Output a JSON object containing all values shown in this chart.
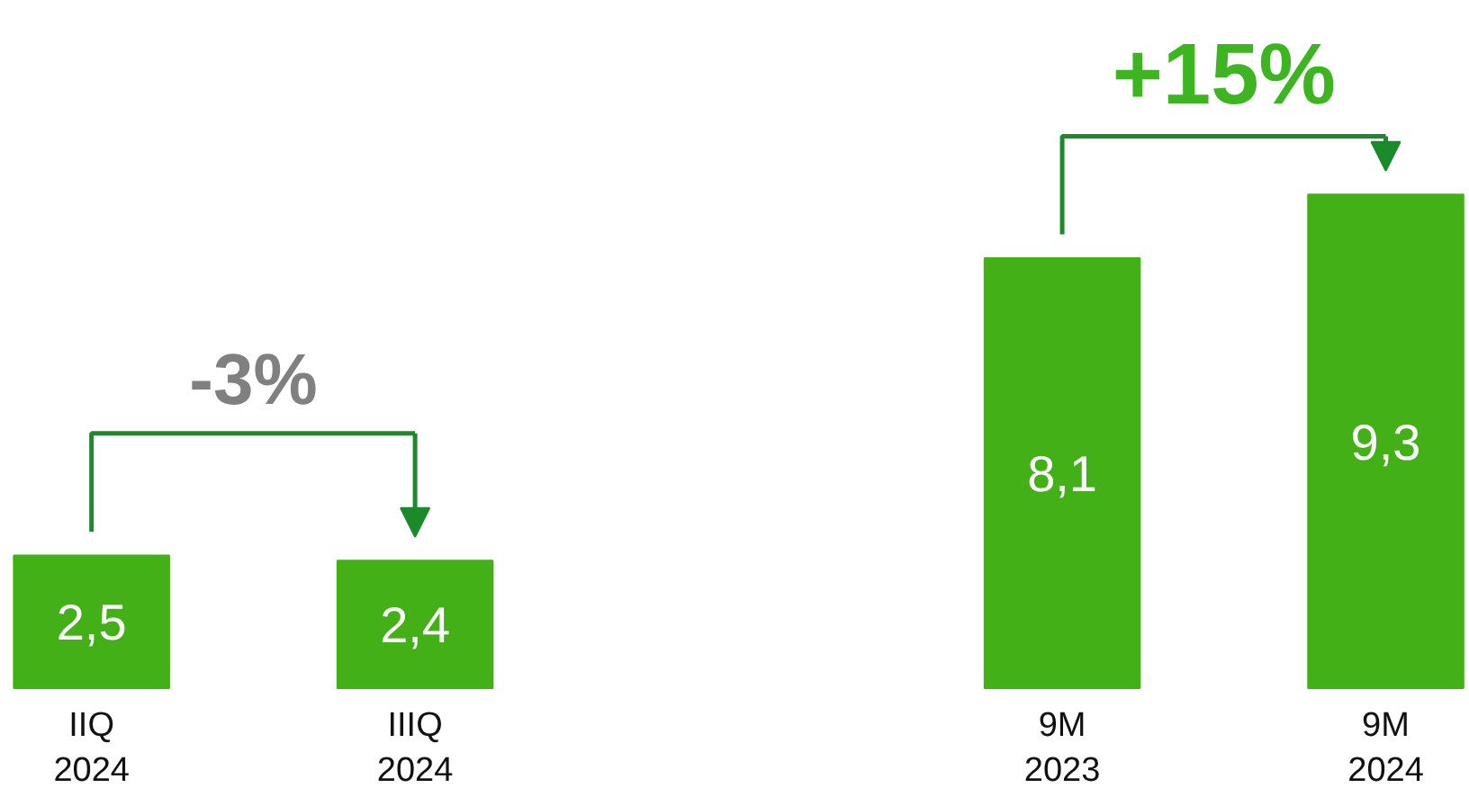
{
  "chart_data": {
    "type": "bar",
    "categories": [
      "IIQ\n2024",
      "IIIQ\n2024",
      null,
      "9M\n2023",
      "9M\n2024"
    ],
    "values": [
      2.5,
      2.4,
      null,
      8.1,
      9.3
    ],
    "value_labels": [
      "2,5",
      "2,4",
      null,
      "8,1",
      "9,3"
    ],
    "color": "#44b018",
    "annotations": [
      "-3%",
      "+15%"
    ]
  }
}
